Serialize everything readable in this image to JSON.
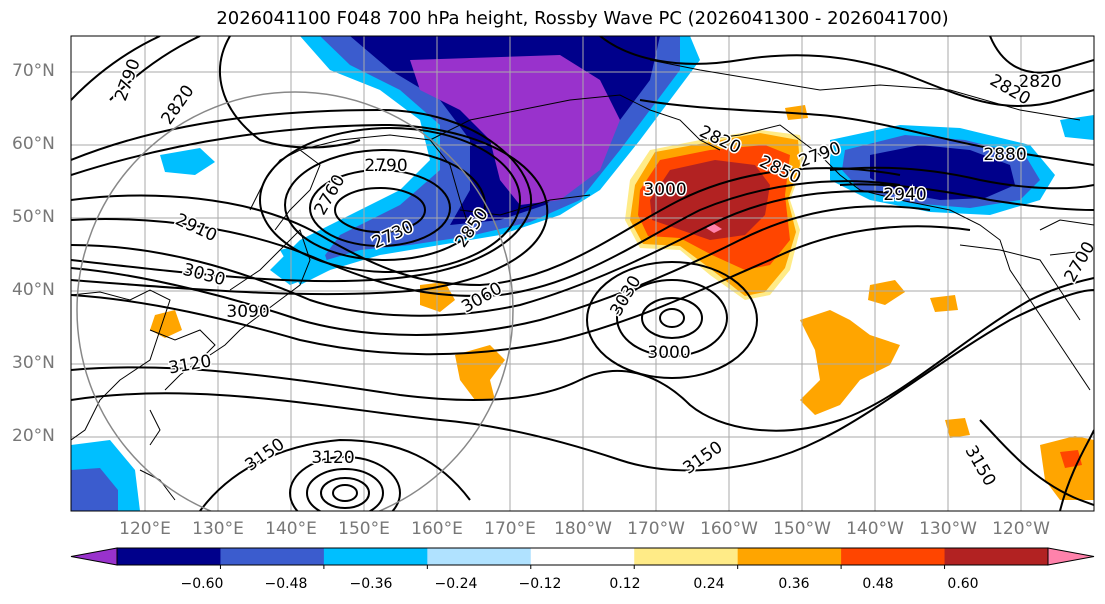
{
  "title": "2026041100 F048 700 hPa height, Rossby Wave PC (2026041300 - 2026041700)",
  "map": {
    "lat_labels": [
      "70°N",
      "60°N",
      "50°N",
      "40°N",
      "30°N",
      "20°N"
    ],
    "lon_labels": [
      "120°E",
      "130°E",
      "140°E",
      "150°E",
      "160°E",
      "170°E",
      "180°W",
      "170°W",
      "160°W",
      "150°W",
      "140°W",
      "130°W",
      "120°W"
    ],
    "contour_labels": [
      "2790",
      "2820",
      "2820",
      "2820",
      "2790",
      "2760",
      "2730",
      "2850",
      "2910",
      "3030",
      "3090",
      "3060",
      "3120",
      "3030",
      "3000",
      "3000",
      "2820",
      "2850",
      "2790",
      "2880",
      "2940",
      "3150",
      "3120",
      "3150",
      "3150",
      "2700"
    ]
  },
  "colorbar": {
    "colors": [
      "#9932CC",
      "#00008B",
      "#3B5CCE",
      "#00BFFF",
      "#B0E2FF",
      "#FFFFFF",
      "#FFEB87",
      "#FFA500",
      "#FF4500",
      "#B22222",
      "#FF82AB"
    ],
    "tick_labels": [
      "−0.60",
      "−0.48",
      "−0.36",
      "−0.24",
      "−0.12",
      "0.12",
      "0.24",
      "0.36",
      "0.48",
      "0.60"
    ]
  }
}
